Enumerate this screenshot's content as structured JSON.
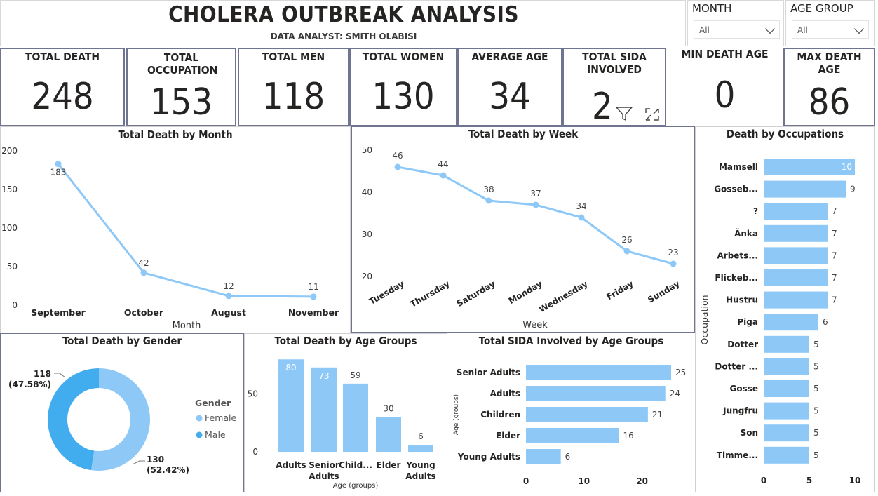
{
  "header": {
    "title": "CHOLERA OUTBREAK ANALYSIS",
    "subtitle": "DATA ANALYST: SMITH OLABISI"
  },
  "slicers": {
    "month": {
      "label": "MONTH",
      "value": "All"
    },
    "age_group": {
      "label": "AGE GROUP",
      "value": "All"
    }
  },
  "cards": [
    {
      "label": "TOTAL DEATH",
      "value": "248"
    },
    {
      "label": "TOTAL OCCUPATION",
      "value": "153"
    },
    {
      "label": "TOTAL MEN",
      "value": "118"
    },
    {
      "label": "TOTAL WOMEN",
      "value": "130"
    },
    {
      "label": "AVERAGE AGE",
      "value": "34"
    },
    {
      "label": "TOTAL SIDA INVOLVED",
      "value": "2"
    },
    {
      "label": "MIN DEATH AGE",
      "value": "0"
    },
    {
      "label": "MAX DEATH AGE",
      "value": "86"
    }
  ],
  "icons": {
    "filter": "filter-icon",
    "focus": "focus-mode-icon"
  },
  "colors": {
    "series": "#8DC8F7",
    "male": "#41ADEF",
    "female": "#8DC8F7",
    "card_border": "#6f7590"
  },
  "chart_data": [
    {
      "id": "month",
      "type": "line",
      "title": "Total Death by Month",
      "xlabel": "Month",
      "ylabel": "",
      "categories": [
        "September",
        "October",
        "August",
        "November"
      ],
      "values": [
        183,
        42,
        12,
        11
      ],
      "ylim": [
        0,
        200
      ],
      "yticks": [
        0,
        50,
        100,
        150,
        200
      ]
    },
    {
      "id": "week",
      "type": "line",
      "title": "Total Death by Week",
      "xlabel": "Week",
      "ylabel": "",
      "categories": [
        "Tuesday",
        "Thursday",
        "Saturday",
        "Monday",
        "Wednesday",
        "Friday",
        "Sunday"
      ],
      "values": [
        46,
        44,
        38,
        37,
        34,
        26,
        23
      ],
      "ylim": [
        20,
        50
      ],
      "yticks": [
        20,
        30,
        40,
        50
      ]
    },
    {
      "id": "occupation",
      "type": "bar",
      "orientation": "horizontal",
      "title": "Death by Occupations",
      "ylabel": "Occupation",
      "categories": [
        "Mamsell",
        "Gosseb...",
        "?",
        "Änka",
        "Arbets...",
        "Flickeb...",
        "Hustru",
        "Piga",
        "Dotter",
        "Dotter ...",
        "Gosse",
        "Jungfru",
        "Son",
        "Timme..."
      ],
      "values": [
        10,
        9,
        7,
        7,
        7,
        7,
        7,
        6,
        5,
        5,
        5,
        5,
        5,
        5
      ],
      "xlim": [
        0,
        10
      ],
      "xticks": [
        0,
        5,
        10
      ]
    },
    {
      "id": "gender",
      "type": "pie",
      "title": "Total Death by Gender",
      "legend_title": "Gender",
      "labels": [
        "Female",
        "Male"
      ],
      "values": [
        130,
        118
      ],
      "data_labels": [
        {
          "value": "130",
          "percent": "(52.42%)"
        },
        {
          "value": "118",
          "percent": "(47.58%)"
        }
      ]
    },
    {
      "id": "age_groups",
      "type": "bar",
      "title": "Total Death by Age Groups",
      "xlabel": "Age (groups)",
      "categories": [
        "Adults",
        "Senior Adults",
        "Child...",
        "Elder",
        "Young Adults"
      ],
      "values": [
        80,
        73,
        59,
        30,
        6
      ],
      "ylim": [
        0,
        85
      ],
      "yticks": [
        0,
        50
      ]
    },
    {
      "id": "sida",
      "type": "bar",
      "orientation": "horizontal",
      "title": "Total SIDA Involved by Age Groups",
      "ylabel": "Age (groups)",
      "categories": [
        "Senior Adults",
        "Adults",
        "Children",
        "Elder",
        "Young Adults"
      ],
      "values": [
        25,
        24,
        21,
        16,
        6
      ],
      "xlim": [
        0,
        25
      ],
      "xticks": [
        0,
        10,
        20
      ]
    }
  ]
}
